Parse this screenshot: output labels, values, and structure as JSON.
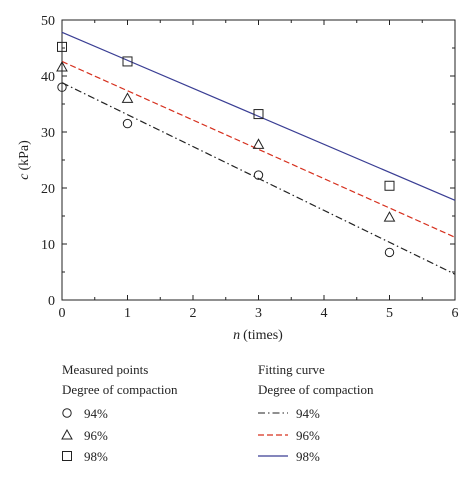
{
  "chart_data": {
    "type": "scatter",
    "xlabel_var": "n",
    "xlabel_unit": "(times)",
    "ylabel_var": "c",
    "ylabel_unit": "(kPa)",
    "xlim": [
      0,
      6
    ],
    "ylim": [
      0,
      50
    ],
    "xticks": [
      "0",
      "1",
      "2",
      "3",
      "4",
      "5",
      "6"
    ],
    "yticks": [
      "0",
      "10",
      "20",
      "30",
      "40",
      "50"
    ],
    "grid": false,
    "measured_series": [
      {
        "name": "94%",
        "marker": "circle",
        "x": [
          0,
          1,
          3,
          5
        ],
        "y": [
          38.0,
          31.5,
          22.3,
          8.5
        ]
      },
      {
        "name": "96%",
        "marker": "triangle",
        "x": [
          0,
          1,
          3,
          5
        ],
        "y": [
          41.6,
          36.0,
          27.8,
          14.8
        ]
      },
      {
        "name": "98%",
        "marker": "square",
        "x": [
          0,
          1,
          3,
          5
        ],
        "y": [
          45.2,
          42.6,
          33.2,
          20.4
        ]
      }
    ],
    "fitting_series": [
      {
        "name": "94%",
        "style": "dash-dot",
        "color": "#222222",
        "x": [
          0,
          6
        ],
        "y": [
          38.8,
          4.6
        ]
      },
      {
        "name": "96%",
        "style": "dashed",
        "color": "#d6301e",
        "x": [
          0,
          6
        ],
        "y": [
          42.6,
          11.2
        ]
      },
      {
        "name": "98%",
        "style": "solid",
        "color": "#3a3e94",
        "x": [
          0,
          6
        ],
        "y": [
          47.8,
          17.8
        ]
      }
    ]
  },
  "legend": {
    "measured_title1": "Measured points",
    "measured_title2": "Degree of compaction",
    "fitting_title1": "Fitting curve",
    "fitting_title2": "Degree of compaction",
    "labels": [
      "94%",
      "96%",
      "98%"
    ]
  }
}
